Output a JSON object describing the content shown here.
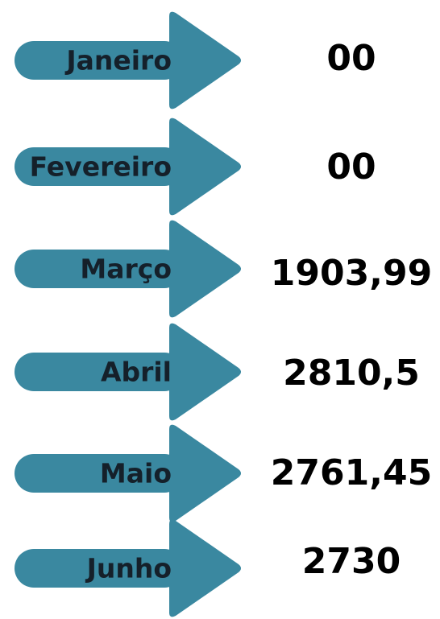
{
  "items": [
    {
      "label": "Janeiro",
      "value": "00"
    },
    {
      "label": "Fevereiro",
      "value": "00"
    },
    {
      "label": "Março",
      "value": "1903,99"
    },
    {
      "label": "Abril",
      "value": "2810,5"
    },
    {
      "label": "Maio",
      "value": "2761,45"
    },
    {
      "label": "Junho",
      "value": "2730"
    }
  ]
}
